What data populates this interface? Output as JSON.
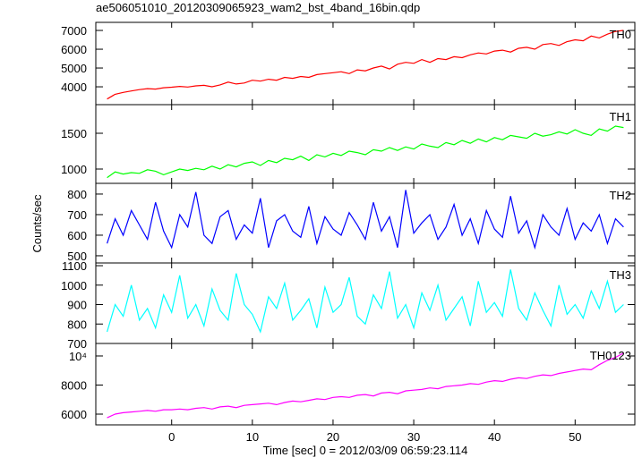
{
  "title": "ae506051010_20120309065923_wam2_bst_4band_16bin.qdp",
  "xlabel": "Time [sec] 0 = 2012/03/09 06:59:23.114",
  "ylabel": "Counts/sec",
  "xlim": [
    -9.4,
    57.4
  ],
  "xticks": [
    0,
    10,
    20,
    30,
    40,
    50
  ],
  "x": [
    -8,
    -7,
    -6,
    -5,
    -4,
    -3,
    -2,
    -1,
    0,
    1,
    2,
    3,
    4,
    5,
    6,
    7,
    8,
    9,
    10,
    11,
    12,
    13,
    14,
    15,
    16,
    17,
    18,
    19,
    20,
    21,
    22,
    23,
    24,
    25,
    26,
    27,
    28,
    29,
    30,
    31,
    32,
    33,
    34,
    35,
    36,
    37,
    38,
    39,
    40,
    41,
    42,
    43,
    44,
    45,
    46,
    47,
    48,
    49,
    50,
    51,
    52,
    53,
    54,
    55,
    56
  ],
  "chart_data": [
    {
      "type": "line",
      "name": "TH0",
      "color": "#ff0000",
      "ylim": [
        3050,
        7430
      ],
      "yticks": [
        4000,
        5000,
        6000,
        7000
      ],
      "values": [
        3350,
        3600,
        3700,
        3780,
        3850,
        3900,
        3880,
        3950,
        3980,
        4020,
        3990,
        4050,
        4080,
        4000,
        4100,
        4250,
        4150,
        4200,
        4350,
        4300,
        4400,
        4350,
        4500,
        4450,
        4550,
        4500,
        4650,
        4700,
        4750,
        4800,
        4700,
        4900,
        4850,
        5000,
        5100,
        4950,
        5200,
        5300,
        5250,
        5450,
        5300,
        5500,
        5450,
        5600,
        5550,
        5700,
        5800,
        5750,
        5900,
        5950,
        5850,
        6050,
        6100,
        6000,
        6250,
        6300,
        6200,
        6400,
        6500,
        6450,
        6700,
        6600,
        6800,
        6950,
        7000
      ]
    },
    {
      "type": "line",
      "name": "TH1",
      "color": "#00ff00",
      "ylim": [
        800,
        1900
      ],
      "yticks": [
        1000,
        1500
      ],
      "values": [
        880,
        960,
        930,
        950,
        940,
        990,
        970,
        920,
        960,
        1000,
        980,
        1010,
        990,
        1040,
        1000,
        1060,
        1030,
        1080,
        1100,
        1050,
        1120,
        1090,
        1150,
        1130,
        1180,
        1120,
        1200,
        1170,
        1220,
        1190,
        1250,
        1230,
        1200,
        1270,
        1250,
        1300,
        1260,
        1310,
        1280,
        1350,
        1320,
        1300,
        1370,
        1340,
        1400,
        1360,
        1420,
        1380,
        1440,
        1410,
        1470,
        1450,
        1430,
        1500,
        1460,
        1480,
        1520,
        1490,
        1550,
        1500,
        1470,
        1560,
        1530,
        1600,
        1580
      ]
    },
    {
      "type": "line",
      "name": "TH2",
      "color": "#0000ff",
      "ylim": [
        465,
        852
      ],
      "yticks": [
        500,
        600,
        700,
        800
      ],
      "values": [
        560,
        680,
        600,
        720,
        650,
        580,
        760,
        620,
        540,
        700,
        640,
        810,
        600,
        560,
        690,
        720,
        580,
        650,
        610,
        780,
        540,
        670,
        700,
        620,
        590,
        740,
        560,
        690,
        630,
        600,
        710,
        650,
        580,
        760,
        620,
        690,
        540,
        820,
        610,
        660,
        700,
        580,
        640,
        750,
        600,
        680,
        560,
        720,
        630,
        590,
        790,
        610,
        670,
        540,
        700,
        640,
        600,
        730,
        580,
        660,
        620,
        700,
        560,
        680,
        640
      ]
    },
    {
      "type": "line",
      "name": "TH3",
      "color": "#00ffff",
      "ylim": [
        700,
        1114
      ],
      "yticks": [
        700,
        800,
        900,
        1000,
        1100
      ],
      "values": [
        760,
        900,
        840,
        1000,
        820,
        880,
        780,
        950,
        860,
        1050,
        830,
        900,
        790,
        980,
        870,
        820,
        1060,
        900,
        850,
        760,
        940,
        880,
        1010,
        820,
        870,
        930,
        780,
        990,
        860,
        900,
        1040,
        840,
        800,
        950,
        880,
        1070,
        830,
        900,
        780,
        960,
        870,
        1000,
        820,
        880,
        940,
        790,
        1020,
        860,
        910,
        840,
        1080,
        880,
        820,
        960,
        870,
        790,
        1000,
        850,
        900,
        830,
        970,
        880,
        1020,
        860,
        900
      ]
    },
    {
      "type": "line",
      "name": "TH0123",
      "color": "#ff00ff",
      "ylim": [
        5262,
        10860
      ],
      "yticks": [
        6000,
        8000,
        {
          "value": 10000,
          "label": "10⁴"
        }
      ],
      "values": [
        5750,
        6000,
        6100,
        6150,
        6200,
        6250,
        6200,
        6300,
        6300,
        6350,
        6300,
        6400,
        6450,
        6350,
        6500,
        6550,
        6450,
        6600,
        6650,
        6700,
        6750,
        6650,
        6800,
        6900,
        6850,
        6950,
        7050,
        7000,
        7150,
        7200,
        7150,
        7300,
        7350,
        7250,
        7450,
        7500,
        7400,
        7600,
        7650,
        7700,
        7800,
        7750,
        7900,
        7950,
        8000,
        8100,
        8050,
        8200,
        8300,
        8250,
        8400,
        8500,
        8450,
        8600,
        8700,
        8650,
        8800,
        8900,
        9000,
        9100,
        9050,
        9400,
        9700,
        9900,
        10200
      ]
    }
  ]
}
